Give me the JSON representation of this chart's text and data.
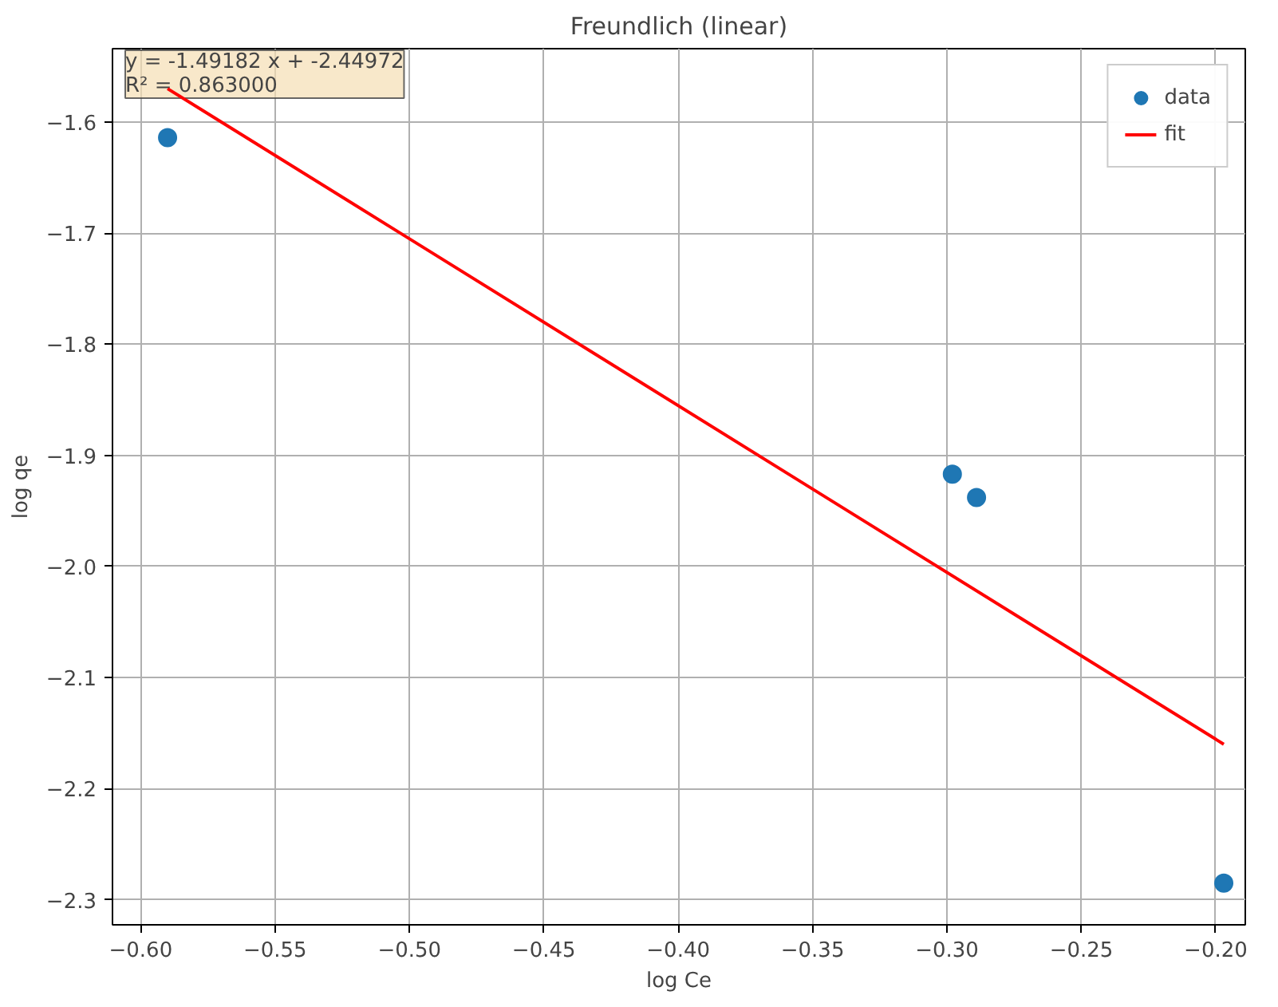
{
  "chart_data": {
    "type": "scatter",
    "title": "Freundlich (linear)",
    "xlabel": "log Ce",
    "ylabel": "log qe",
    "xlim": [
      -0.6105,
      -0.189
    ],
    "ylim": [
      -2.3225,
      -1.534
    ],
    "xticks": [
      {
        "value": -0.6,
        "label": "−0.60"
      },
      {
        "value": -0.55,
        "label": "−0.55"
      },
      {
        "value": -0.5,
        "label": "−0.50"
      },
      {
        "value": -0.45,
        "label": "−0.45"
      },
      {
        "value": -0.4,
        "label": "−0.40"
      },
      {
        "value": -0.35,
        "label": "−0.35"
      },
      {
        "value": -0.3,
        "label": "−0.30"
      },
      {
        "value": -0.25,
        "label": "−0.25"
      },
      {
        "value": -0.2,
        "label": "−0.20"
      }
    ],
    "yticks": [
      {
        "value": -1.6,
        "label": "−1.6"
      },
      {
        "value": -1.7,
        "label": "−1.7"
      },
      {
        "value": -1.8,
        "label": "−1.8"
      },
      {
        "value": -1.9,
        "label": "−1.9"
      },
      {
        "value": -2.0,
        "label": "−2.0"
      },
      {
        "value": -2.1,
        "label": "−2.1"
      },
      {
        "value": -2.2,
        "label": "−2.2"
      },
      {
        "value": -2.3,
        "label": "−2.3"
      }
    ],
    "series": [
      {
        "name": "data",
        "color": "#1f77b4",
        "marker": "circle",
        "x": [
          -0.59,
          -0.298,
          -0.289,
          -0.197
        ],
        "values": [
          -1.614,
          -1.917,
          -1.938,
          -2.285
        ]
      },
      {
        "name": "fit",
        "type": "line",
        "color": "#ff0000",
        "line_style": "solid",
        "x": [
          -0.59,
          -0.197
        ],
        "values": [
          -1.57,
          -2.16
        ]
      }
    ],
    "annotations": [
      "y = -1.49182 x + -2.44972\nR² = 0.863000"
    ],
    "grid": true,
    "legend": "top right"
  }
}
